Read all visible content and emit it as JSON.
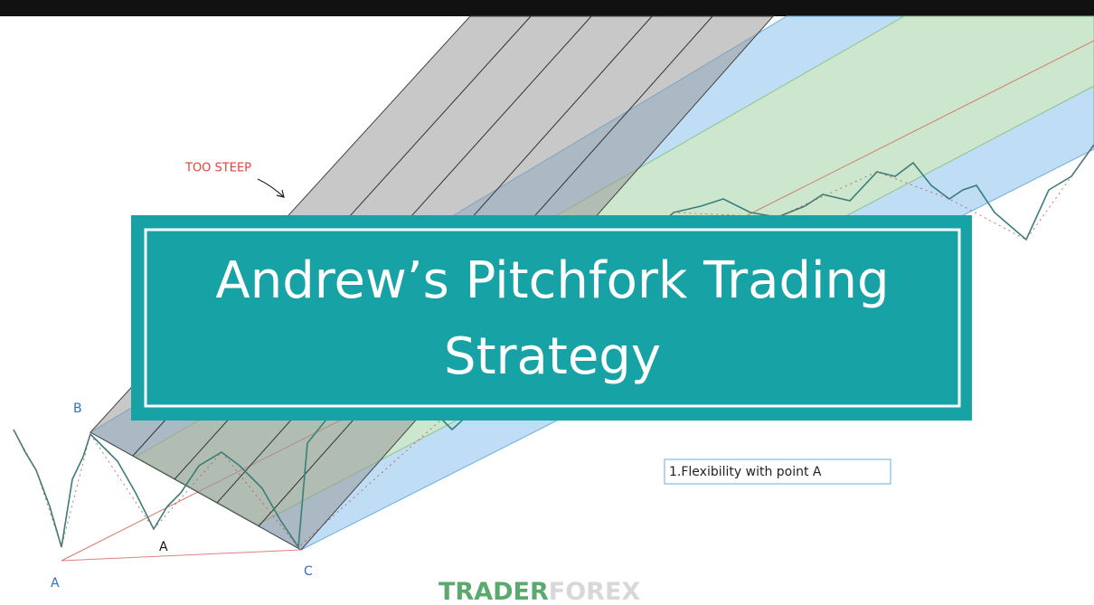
{
  "title": {
    "line1": "Andrew’s Pitchfork Trading",
    "line2": "Strategy"
  },
  "annotations": {
    "too_steep": "TOO STEEP",
    "point_b": "B",
    "point_a_low": "A",
    "point_a_high": "A",
    "point_c": "C",
    "note": "1.Flexibility with point A"
  },
  "logo": {
    "part1": "TRADER",
    "part2": "FOREX"
  }
}
